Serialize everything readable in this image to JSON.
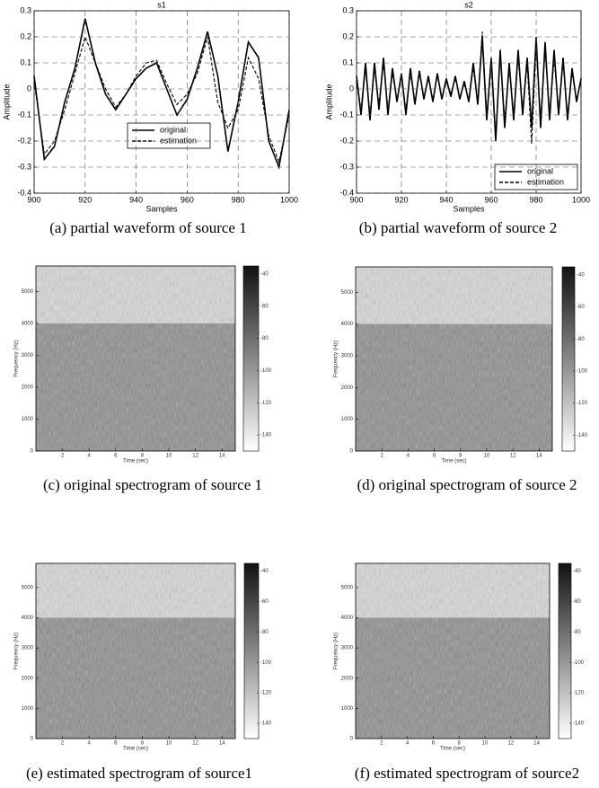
{
  "chart_data": [
    {
      "type": "line",
      "title": "s1",
      "xlabel": "Samples",
      "ylabel": "Amplitude",
      "caption": "(a) partial waveform of source 1",
      "x": [
        900,
        904,
        908,
        912,
        916,
        920,
        924,
        928,
        932,
        936,
        940,
        944,
        948,
        952,
        956,
        960,
        964,
        968,
        972,
        976,
        980,
        984,
        988,
        992,
        996,
        1000
      ],
      "series": [
        {
          "name": "original",
          "color": "#000000",
          "linestyle": "solid",
          "values": [
            0.05,
            -0.27,
            -0.22,
            -0.05,
            0.08,
            0.27,
            0.1,
            -0.02,
            -0.08,
            -0.02,
            0.04,
            0.08,
            0.1,
            0.0,
            -0.1,
            -0.04,
            0.08,
            0.22,
            0.05,
            -0.24,
            -0.05,
            0.18,
            0.12,
            -0.2,
            -0.3,
            -0.08
          ]
        },
        {
          "name": "estimation",
          "color": "#000000",
          "linestyle": "dashed",
          "values": [
            0.03,
            -0.25,
            -0.2,
            -0.08,
            0.06,
            0.2,
            0.1,
            0.0,
            -0.07,
            -0.02,
            0.05,
            0.1,
            0.11,
            0.02,
            -0.06,
            -0.02,
            0.06,
            0.2,
            -0.05,
            -0.15,
            -0.08,
            0.12,
            0.04,
            -0.18,
            -0.28,
            -0.1
          ]
        }
      ],
      "xlim": [
        900,
        1000
      ],
      "xticks": [
        900,
        920,
        940,
        960,
        980,
        1000
      ],
      "ylim": [
        -0.4,
        0.3
      ],
      "yticks": [
        -0.4,
        -0.3,
        -0.2,
        -0.1,
        0,
        0.1,
        0.2,
        0.3
      ],
      "grid": true,
      "legend": "lower center"
    },
    {
      "type": "line",
      "title": "s2",
      "xlabel": "Samples",
      "ylabel": "Amplitude",
      "caption": "(b) partial waveform of source 2",
      "x": [
        900,
        902,
        904,
        906,
        908,
        910,
        912,
        914,
        916,
        918,
        920,
        922,
        924,
        926,
        928,
        930,
        932,
        934,
        936,
        938,
        940,
        942,
        944,
        946,
        948,
        950,
        952,
        954,
        956,
        958,
        960,
        962,
        964,
        966,
        968,
        970,
        972,
        974,
        976,
        978,
        980,
        982,
        984,
        986,
        988,
        990,
        992,
        994,
        996,
        998,
        1000
      ],
      "series": [
        {
          "name": "original",
          "color": "#000000",
          "linestyle": "solid",
          "values": [
            0.05,
            -0.1,
            0.1,
            -0.12,
            0.1,
            -0.08,
            0.12,
            -0.1,
            0.08,
            -0.05,
            0.06,
            -0.1,
            0.08,
            -0.06,
            0.07,
            -0.04,
            0.05,
            -0.05,
            0.06,
            -0.04,
            0.04,
            -0.03,
            0.05,
            -0.04,
            0.03,
            -0.05,
            0.1,
            -0.06,
            0.2,
            -0.12,
            0.12,
            -0.2,
            0.15,
            -0.15,
            0.1,
            -0.12,
            0.15,
            -0.1,
            0.12,
            -0.15,
            0.2,
            -0.15,
            0.18,
            -0.12,
            0.15,
            -0.1,
            0.12,
            -0.12,
            0.08,
            -0.05,
            0.04
          ]
        },
        {
          "name": "estimation",
          "color": "#000000",
          "linestyle": "dashed",
          "values": [
            0.03,
            -0.08,
            0.08,
            -0.1,
            0.08,
            -0.06,
            0.1,
            -0.08,
            0.06,
            -0.04,
            0.05,
            -0.08,
            0.06,
            -0.05,
            0.06,
            -0.03,
            0.04,
            -0.04,
            0.05,
            -0.03,
            0.03,
            -0.02,
            0.04,
            -0.03,
            0.02,
            -0.04,
            0.08,
            -0.05,
            0.22,
            -0.1,
            0.1,
            -0.18,
            0.13,
            -0.12,
            0.08,
            -0.1,
            0.12,
            -0.08,
            0.1,
            -0.21,
            0.17,
            -0.12,
            0.15,
            -0.1,
            0.12,
            -0.08,
            0.1,
            -0.1,
            0.06,
            -0.04,
            0.03
          ]
        }
      ],
      "xlim": [
        900,
        1000
      ],
      "xticks": [
        900,
        920,
        940,
        960,
        980,
        1000
      ],
      "ylim": [
        -0.4,
        0.3
      ],
      "yticks": [
        -0.4,
        -0.3,
        -0.2,
        -0.1,
        0,
        0.1,
        0.2,
        0.3
      ],
      "grid": true,
      "legend": "lower right"
    },
    {
      "type": "spectrogram",
      "xlabel": "Time (sec)",
      "ylabel": "Frequency (Hz)",
      "caption": "(c) original spectrogram of source 1",
      "xlim": [
        0,
        15
      ],
      "xticks": [
        2,
        4,
        6,
        8,
        10,
        12,
        14
      ],
      "ylim": [
        0,
        5800
      ],
      "yticks": [
        0,
        1000,
        2000,
        3000,
        4000,
        5000
      ],
      "clim": [
        -150,
        -35
      ],
      "cticks": [
        -40,
        -60,
        -80,
        -100,
        -120,
        -140
      ]
    },
    {
      "type": "spectrogram",
      "xlabel": "Time (sec)",
      "ylabel": "Frequency (Hz)",
      "caption": "(d) original spectrogram of source 2",
      "xlim": [
        0,
        15
      ],
      "xticks": [
        2,
        4,
        6,
        8,
        10,
        12,
        14
      ],
      "ylim": [
        0,
        5800
      ],
      "yticks": [
        0,
        1000,
        2000,
        3000,
        4000,
        5000
      ],
      "clim": [
        -150,
        -35
      ],
      "cticks": [
        -40,
        -60,
        -80,
        -100,
        -120,
        -140
      ]
    },
    {
      "type": "spectrogram",
      "xlabel": "Time (sec)",
      "ylabel": "Frequency (Hz)",
      "caption": "(e) estimated spectrogram of source1",
      "xlim": [
        0,
        15
      ],
      "xticks": [
        2,
        4,
        6,
        8,
        10,
        12,
        14
      ],
      "ylim": [
        0,
        5800
      ],
      "yticks": [
        0,
        1000,
        2000,
        3000,
        4000,
        5000
      ],
      "clim": [
        -150,
        -35
      ],
      "cticks": [
        -40,
        -60,
        -80,
        -100,
        -120,
        -140
      ]
    },
    {
      "type": "spectrogram",
      "xlabel": "Time (sec)",
      "ylabel": "Frequency (Hz)",
      "caption": "(f) estimated spectrogram of source2",
      "xlim": [
        0,
        15
      ],
      "xticks": [
        2,
        4,
        6,
        8,
        10,
        12,
        14
      ],
      "ylim": [
        0,
        5800
      ],
      "yticks": [
        0,
        1000,
        2000,
        3000,
        4000,
        5000
      ],
      "clim": [
        -150,
        -35
      ],
      "cticks": [
        -40,
        -60,
        -80,
        -100,
        -120,
        -140
      ]
    }
  ]
}
